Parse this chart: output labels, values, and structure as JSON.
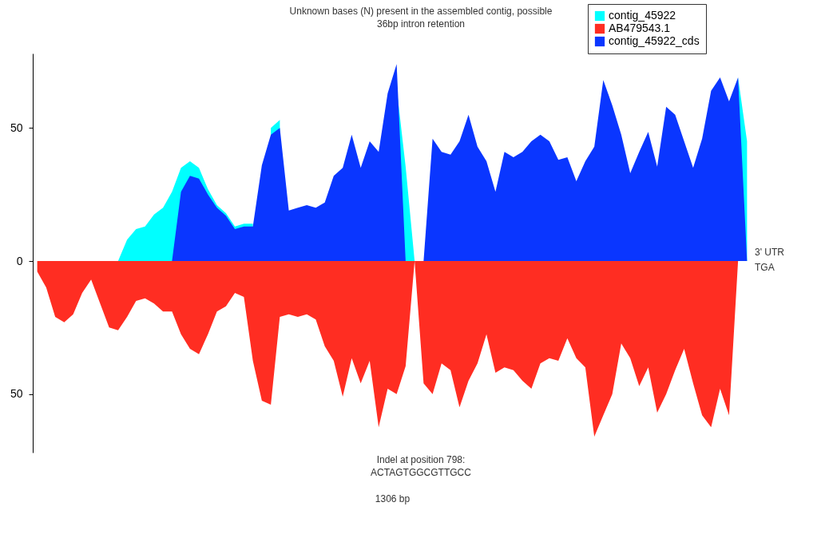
{
  "chart_data": {
    "type": "area",
    "xlabel": "1306 bp",
    "categories": [
      null,
      null,
      null,
      null,
      null,
      null,
      null,
      null,
      null,
      null,
      null,
      null,
      null,
      null,
      null,
      null,
      null,
      null,
      null,
      null,
      null,
      null,
      null,
      null,
      null,
      null,
      null,
      null,
      null,
      null,
      null,
      null,
      null,
      null,
      null,
      null,
      null,
      null,
      null,
      null,
      null,
      null,
      null,
      null,
      null,
      null,
      null,
      null,
      null,
      null,
      null,
      null,
      null,
      null,
      null,
      null,
      null,
      null,
      null,
      null,
      null,
      null,
      null,
      null,
      null,
      null,
      null,
      null,
      null,
      null,
      null,
      null,
      null,
      null,
      null,
      null,
      null,
      null,
      null,
      null
    ],
    "series": [
      {
        "name": "contig_45922",
        "color": "#00ffff",
        "values": [
          0,
          0,
          0,
          0,
          0,
          0,
          0,
          0,
          0,
          0,
          8,
          12,
          13,
          17.5,
          20,
          26,
          35,
          37.5,
          35,
          27,
          21,
          18,
          13,
          14,
          14,
          null,
          50,
          53,
          null,
          null,
          null,
          null,
          null,
          null,
          null,
          null,
          null,
          null,
          null,
          null,
          65,
          35.5,
          0,
          0,
          null,
          null,
          null,
          null,
          null,
          null,
          null,
          null,
          null,
          null,
          null,
          null,
          null,
          null,
          null,
          null,
          null,
          null,
          null,
          null,
          null,
          null,
          null,
          null,
          null,
          null,
          null,
          null,
          null,
          null,
          null,
          null,
          null,
          null,
          69,
          45
        ]
      },
      {
        "name": "AB479543.1",
        "color": "#ff2d22",
        "values": [
          -4,
          -10,
          -21,
          -23,
          -20,
          -12,
          -7,
          -16,
          -25,
          -26,
          -21,
          -15,
          -14,
          -16,
          -19,
          -19,
          -27.5,
          -33,
          -35,
          -27.5,
          -19,
          -17,
          -12,
          -13.5,
          -37.5,
          -52.5,
          -54,
          -21,
          -20,
          -21,
          -20,
          -22,
          -32,
          -37.5,
          -51,
          -36.5,
          -46,
          -37.5,
          -62.5,
          -48,
          -50,
          -39.5,
          0,
          -46,
          -50,
          -38.5,
          -41,
          -55,
          -45,
          -38.5,
          -27.5,
          -42,
          -40,
          -41,
          -45,
          -48,
          -38.5,
          -36.5,
          -37.5,
          -29,
          -36.5,
          -40,
          -66,
          -58,
          -50,
          -31,
          -36.5,
          -47,
          -40,
          -57,
          -50,
          -41,
          -33,
          -46,
          -58,
          -62.5,
          -48,
          -58,
          0,
          0
        ]
      },
      {
        "name": "contig_45922_cds",
        "color": "#0a36ff",
        "values": [
          0,
          0,
          0,
          0,
          0,
          0,
          0,
          0,
          0,
          0,
          0,
          0,
          0,
          0,
          0,
          0,
          26,
          32,
          31,
          25,
          20,
          17,
          12,
          13,
          13,
          36,
          47.5,
          50,
          19,
          20,
          21,
          20,
          22,
          32,
          35,
          47.5,
          35,
          45,
          41,
          63,
          74,
          0,
          0,
          0,
          46,
          41,
          40,
          45,
          55,
          43,
          37.5,
          26,
          41,
          39,
          41,
          45,
          47.5,
          45,
          38,
          39,
          30,
          37.5,
          43,
          68,
          58.5,
          47.5,
          33,
          41,
          48.5,
          35.5,
          58,
          55,
          45,
          35,
          46,
          64,
          69,
          60,
          69,
          0
        ]
      }
    ],
    "ylim": [
      -72,
      78
    ],
    "yticks": [
      {
        "value": -50,
        "label": "50"
      },
      0,
      50
    ],
    "tick_labels": "y",
    "grid": false,
    "legend": "top right",
    "annotations": [
      "Unknown bases (N) present in the assembled contig, possible\n36bp intron retention",
      "Indel at position 798:\nACTAGTGGCGTTGCC",
      "3' UTR",
      "TGA"
    ]
  }
}
